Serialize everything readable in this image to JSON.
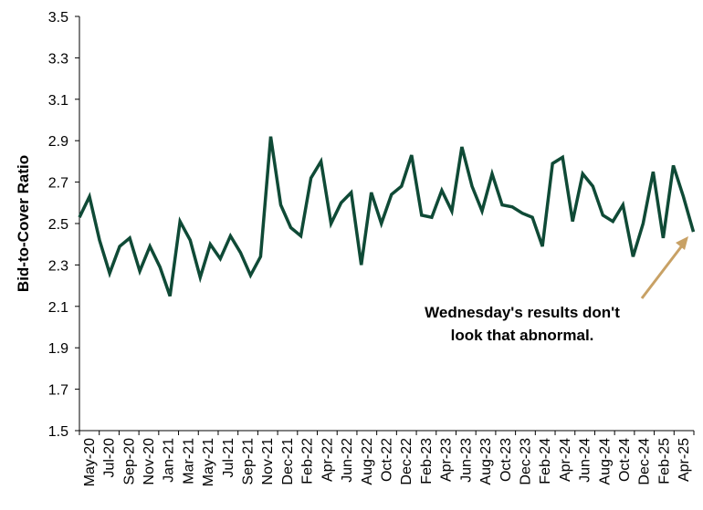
{
  "chart_data": {
    "type": "line",
    "title": "",
    "xlabel": "",
    "ylabel": "Bid-to-Cover Ratio",
    "ylim": [
      1.5,
      3.5
    ],
    "yticks": [
      "1.5",
      "1.7",
      "1.9",
      "2.1",
      "2.3",
      "2.5",
      "2.7",
      "2.9",
      "3.1",
      "3.3",
      "3.5"
    ],
    "xtick_labels": [
      "May-20",
      "Jul-20",
      "Sep-20",
      "Nov-20",
      "Jan-21",
      "Mar-21",
      "May-21",
      "Jul-21",
      "Sep-21",
      "Nov-21",
      "Dec-21",
      "Feb-22",
      "Apr-22",
      "Jun-22",
      "Aug-22",
      "Oct-22",
      "Dec-22",
      "Feb-23",
      "Apr-23",
      "Jun-23",
      "Aug-23",
      "Oct-23",
      "Dec-23",
      "Feb-24",
      "Apr-24",
      "Jun-24",
      "Aug-24",
      "Oct-24",
      "Dec-24",
      "Feb-25",
      "Apr-25"
    ],
    "grid": false,
    "line_color": "#0f4a36",
    "series": [
      {
        "values": [
          2.53,
          2.63,
          2.42,
          2.26,
          2.39,
          2.43,
          2.27,
          2.39,
          2.29,
          2.15,
          2.51,
          2.42,
          2.24,
          2.4,
          2.33,
          2.44,
          2.36,
          2.25,
          2.34,
          2.92,
          2.59,
          2.48,
          2.44,
          2.72,
          2.8,
          2.5,
          2.6,
          2.65,
          2.3,
          2.65,
          2.5,
          2.64,
          2.68,
          2.83,
          2.54,
          2.53,
          2.66,
          2.56,
          2.87,
          2.68,
          2.56,
          2.74,
          2.59,
          2.58,
          2.55,
          2.53,
          2.39,
          2.79,
          2.82,
          2.51,
          2.74,
          2.68,
          2.54,
          2.51,
          2.59,
          2.34,
          2.5,
          2.75,
          2.43,
          2.78,
          2.63,
          2.46
        ]
      }
    ],
    "annotation": {
      "lines": [
        "Wednesday's results don't",
        "look that abnormal."
      ],
      "arrow_color": "#c8a165"
    }
  }
}
